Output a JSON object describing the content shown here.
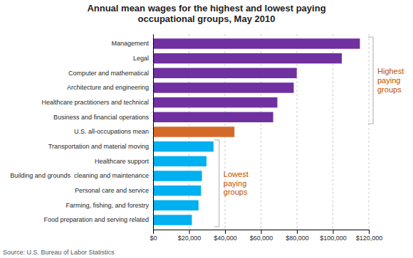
{
  "chart_data": {
    "type": "bar",
    "orientation": "horizontal",
    "title": "Annual mean wages for the highest and lowest paying\noccupational groups, May 2010",
    "categories": [
      "Management",
      "Legal",
      "Computer and mathematical",
      "Architecture and engineering",
      "Healthcare practitioners and technical",
      "Business and financial operations",
      "U.S. all-occupations mean",
      "Transportation and material moving",
      "Healthcare support",
      "Building and grounds  cleaning and maintenance",
      "Personal care and service",
      "Farming, fishing, and forestry",
      "Food preparation and serving related"
    ],
    "values": [
      115020,
      104980,
      79900,
      78230,
      69110,
      66790,
      45230,
      33600,
      29700,
      27170,
      26690,
      25270,
      21580
    ],
    "colors": [
      "#7030A0",
      "#7030A0",
      "#7030A0",
      "#7030A0",
      "#7030A0",
      "#7030A0",
      "#D46A2A",
      "#00B0F0",
      "#00B0F0",
      "#00B0F0",
      "#00B0F0",
      "#00B0F0",
      "#00B0F0"
    ],
    "xlim": [
      0,
      120000
    ],
    "xticks": [
      {
        "value": 0,
        "label": "$0"
      },
      {
        "value": 20000,
        "label": "$20,000"
      },
      {
        "value": 40000,
        "label": "$40,000"
      },
      {
        "value": 60000,
        "label": "$60,000"
      },
      {
        "value": 80000,
        "label": "$80,000"
      },
      {
        "value": 100000,
        "label": "$100,000"
      },
      {
        "value": 120000,
        "label": "$120,000"
      }
    ],
    "grid": true,
    "annotations": [
      {
        "text": "Highest\npaying\ngroups",
        "color": "#C05000"
      },
      {
        "text": "Lowest\npaying\ngroups",
        "color": "#C05000"
      }
    ],
    "source": "Source: U.S. Bureau of Labor Statistics"
  }
}
